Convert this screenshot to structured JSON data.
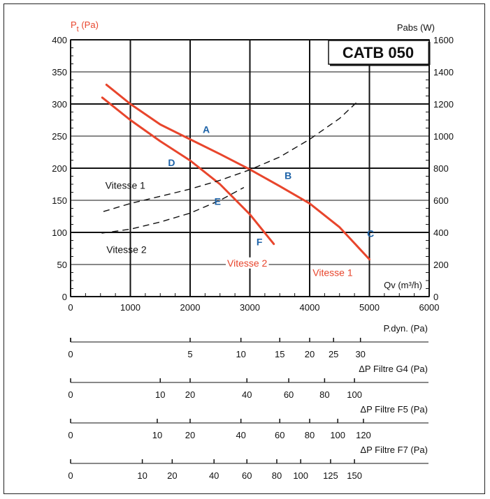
{
  "chart_data": {
    "type": "line",
    "title": "CATB 050",
    "xlabel": "Qv (m³/h)",
    "ylabel": "Pt (Pa)",
    "ylabel_main": "P",
    "ylabel_sub": "t",
    "ylabel_unit": "(Pa)",
    "y2label": "Pabs (W)",
    "xlim": [
      0,
      6000
    ],
    "ylim": [
      0,
      400
    ],
    "y2lim": [
      0,
      1600
    ],
    "x_ticks": [
      0,
      1000,
      2000,
      3000,
      4000,
      5000,
      6000
    ],
    "y_ticks": [
      0,
      50,
      100,
      150,
      200,
      250,
      300,
      350,
      400
    ],
    "y2_ticks": [
      0,
      200,
      400,
      600,
      800,
      1000,
      1200,
      1400,
      1600
    ],
    "pressure_series": [
      {
        "name": "Vitesse 1",
        "color": "#e8452c",
        "x": [
          600,
          1000,
          1500,
          2000,
          2500,
          3000,
          3500,
          4000,
          4500,
          5000
        ],
        "y": [
          330,
          300,
          268,
          245,
          222,
          198,
          172,
          145,
          108,
          58
        ]
      },
      {
        "name": "Vitesse 2",
        "color": "#e8452c",
        "x": [
          530,
          1000,
          1500,
          2000,
          2500,
          3000,
          3400
        ],
        "y": [
          310,
          275,
          242,
          212,
          175,
          128,
          82
        ]
      }
    ],
    "power_series": [
      {
        "name": "Vitesse 1",
        "dashed": true,
        "x": [
          550,
          1000,
          1500,
          2000,
          2500,
          3000,
          3500,
          4000,
          4500,
          4800
        ],
        "y": [
          530,
          580,
          625,
          670,
          725,
          790,
          870,
          980,
          1110,
          1215
        ]
      },
      {
        "name": "Vitesse 2",
        "dashed": true,
        "x": [
          520,
          1000,
          1500,
          2000,
          2500,
          2900
        ],
        "y": [
          395,
          420,
          465,
          520,
          600,
          680
        ]
      }
    ],
    "point_labels": [
      {
        "text": "A",
        "x": 2270,
        "y": 255
      },
      {
        "text": "B",
        "x": 3640,
        "y": 183
      },
      {
        "text": "C",
        "x": 5020,
        "y": 93
      },
      {
        "text": "D",
        "x": 1690,
        "y": 203
      },
      {
        "text": "E",
        "x": 2460,
        "y": 143
      },
      {
        "text": "F",
        "x": 3160,
        "y": 80
      }
    ],
    "curve_labels": [
      {
        "text": "Vitesse 1",
        "color": "#111",
        "x": 580,
        "y": 168
      },
      {
        "text": "Vitesse 2",
        "color": "#111",
        "x": 600,
        "y": 68
      },
      {
        "text": "Vitesse 2",
        "color": "#e8452c",
        "x": 2620,
        "y": 47
      },
      {
        "text": "Vitesse 1",
        "color": "#e8452c",
        "x": 4050,
        "y": 32
      }
    ],
    "aux_scales": [
      {
        "title": "P.dyn. (Pa)",
        "ticks": [
          0,
          5,
          10,
          15,
          20,
          25,
          30
        ],
        "tick_qv": [
          0,
          2000,
          2850,
          3500,
          4000,
          4400,
          4850
        ]
      },
      {
        "title": "ΔP Filtre G4 (Pa)",
        "ticks": [
          10,
          20,
          40,
          60,
          80,
          100
        ],
        "zero_label": "0",
        "tick_qv": [
          1500,
          2000,
          2950,
          3650,
          4250,
          4750
        ]
      },
      {
        "title": "ΔP Filtre F5 (Pa)",
        "ticks": [
          10,
          20,
          40,
          60,
          80,
          100,
          120
        ],
        "zero_label": "0",
        "tick_qv": [
          1450,
          2000,
          2850,
          3500,
          4000,
          4470,
          4900
        ]
      },
      {
        "title": "ΔP Filtre F7 (Pa)",
        "ticks": [
          10,
          20,
          40,
          60,
          80,
          100,
          125,
          150
        ],
        "zero_label": "0",
        "tick_qv": [
          1200,
          1700,
          2400,
          2950,
          3450,
          3850,
          4350,
          4750
        ]
      }
    ],
    "grid": true
  }
}
